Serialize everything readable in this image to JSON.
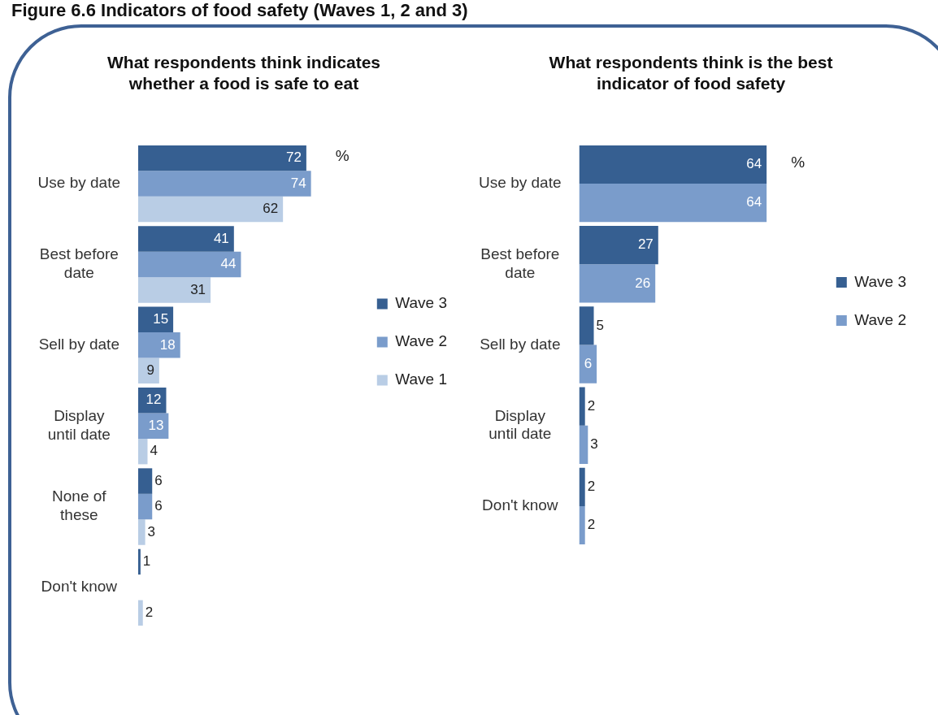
{
  "chart_data": [
    {
      "type": "bar",
      "orientation": "horizontal",
      "title": "What respondents think indicates whether a food is safe to eat",
      "categories": [
        "Use by date",
        "Best before date",
        "Sell by date",
        "Display until date",
        "None of these",
        "Don't know"
      ],
      "series": [
        {
          "name": "Wave 3",
          "color": "#365f91",
          "values": [
            72,
            41,
            15,
            12,
            6,
            1
          ]
        },
        {
          "name": "Wave 2",
          "color": "#7a9ccb",
          "values": [
            74,
            44,
            18,
            13,
            6,
            null
          ]
        },
        {
          "name": "Wave 1",
          "color": "#b9cde5",
          "values": [
            62,
            31,
            9,
            4,
            3,
            2
          ]
        }
      ],
      "data_labels": true,
      "legend": "right",
      "grid": false,
      "tick_labels": "y",
      "annotations": [
        "Figure 6.6 Indicators of food safety (Waves 1, 2 and 3)",
        "%"
      ]
    },
    {
      "type": "bar",
      "orientation": "horizontal",
      "title": "What respondents think is the best indicator of food safety",
      "categories": [
        "Use by date",
        "Best before date",
        "Sell by date",
        "Display until date",
        "Don't know"
      ],
      "series": [
        {
          "name": "Wave 3",
          "color": "#365f91",
          "values": [
            64,
            27,
            5,
            2,
            2
          ]
        },
        {
          "name": "Wave 2",
          "color": "#7a9ccb",
          "values": [
            64,
            26,
            6,
            3,
            2
          ]
        }
      ],
      "data_labels": true,
      "legend": "right",
      "grid": false,
      "tick_labels": "y",
      "annotations": [
        "%"
      ]
    }
  ]
}
